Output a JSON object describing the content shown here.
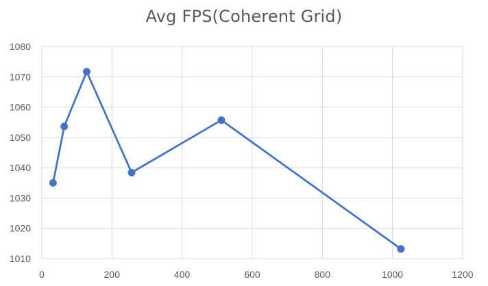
{
  "chart_data": {
    "type": "scatter",
    "title": "Avg FPS(Coherent Grid)",
    "xlabel": "",
    "ylabel": "",
    "xlim": [
      0,
      1200
    ],
    "ylim": [
      1010,
      1080
    ],
    "xticks": [
      0,
      200,
      400,
      600,
      800,
      1000,
      1200
    ],
    "yticks": [
      1010,
      1020,
      1030,
      1040,
      1050,
      1060,
      1070,
      1080
    ],
    "grid": true,
    "legend": "none",
    "series": [
      {
        "x": [
          32,
          64,
          128,
          256,
          512,
          1024
        ],
        "y": [
          1035,
          1053.6,
          1071.7,
          1038.4,
          1055.7,
          1013.2
        ],
        "color": "#4472C4",
        "marker": "circle",
        "line": "straight"
      }
    ]
  },
  "colors": {
    "series": "#4472C4",
    "grid": "#d9d9d9",
    "axis_text": "#595959"
  }
}
